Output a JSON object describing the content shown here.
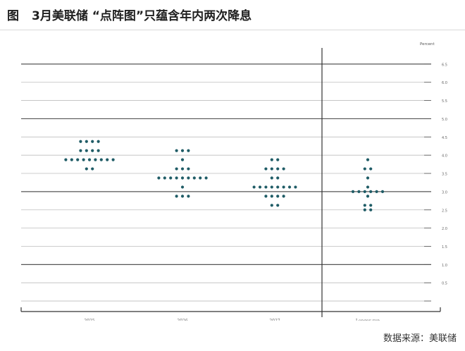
{
  "title": {
    "fig_label": "图",
    "text": "3月美联储 “点阵图”只蕴含年内两次降息"
  },
  "source": "数据来源：美联储",
  "chart_data": {
    "type": "scatter",
    "categories": [
      "2025",
      "2026",
      "2027",
      "Longer run"
    ],
    "yaxis_title": "Percent",
    "ylim": [
      -0.25,
      7.0
    ],
    "yticks": [
      0,
      0.5,
      1,
      1.5,
      2,
      2.5,
      3,
      3.5,
      4,
      4.5,
      5,
      5.5,
      6,
      6.5
    ],
    "ytick_labels": [
      "",
      "0.5",
      "1.0",
      "1.5",
      "2.0",
      "2.5",
      "3.0",
      "3.5",
      "4.0",
      "4.5",
      "5.0",
      "5.5",
      "6.0",
      "6.5"
    ],
    "major_gridlines": [
      1,
      3,
      5,
      6.5
    ],
    "grid": true,
    "separator_after_category": 2,
    "dot_color": "#1f5c66",
    "series": [
      {
        "values": [
          {
            "y": 4.375,
            "count": 4
          },
          {
            "y": 4.125,
            "count": 4
          },
          {
            "y": 3.875,
            "count": 9
          },
          {
            "y": 3.625,
            "count": 2
          }
        ]
      },
      {
        "values": [
          {
            "y": 4.125,
            "count": 3
          },
          {
            "y": 3.875,
            "count": 1
          },
          {
            "y": 3.625,
            "count": 3
          },
          {
            "y": 3.375,
            "count": 9
          },
          {
            "y": 3.125,
            "count": 1
          },
          {
            "y": 2.875,
            "count": 3
          }
        ]
      },
      {
        "values": [
          {
            "y": 3.875,
            "count": 2
          },
          {
            "y": 3.625,
            "count": 4
          },
          {
            "y": 3.375,
            "count": 2
          },
          {
            "y": 3.125,
            "count": 8
          },
          {
            "y": 2.875,
            "count": 4
          },
          {
            "y": 2.625,
            "count": 2
          }
        ]
      },
      {
        "values": [
          {
            "y": 3.875,
            "count": 1
          },
          {
            "y": 3.625,
            "count": 2
          },
          {
            "y": 3.375,
            "count": 1
          },
          {
            "y": 3.125,
            "count": 1
          },
          {
            "y": 3.0,
            "count": 6
          },
          {
            "y": 2.875,
            "count": 1
          },
          {
            "y": 2.625,
            "count": 2
          },
          {
            "y": 2.5,
            "count": 2
          }
        ]
      }
    ]
  }
}
